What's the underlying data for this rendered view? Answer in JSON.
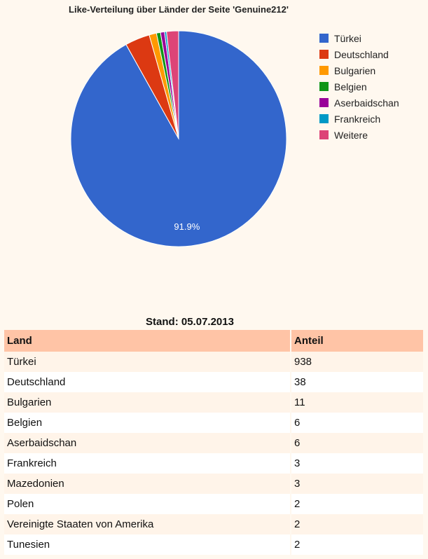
{
  "chart_data": {
    "type": "pie",
    "title": "Like-Verteilung über Länder der Seite 'Genuine212'",
    "slices": [
      {
        "label": "Türkei",
        "value": 91.9,
        "color": "#3366cc"
      },
      {
        "label": "Deutschland",
        "value": 3.7,
        "color": "#dc3912"
      },
      {
        "label": "Bulgarien",
        "value": 1.1,
        "color": "#ff9900"
      },
      {
        "label": "Belgien",
        "value": 0.6,
        "color": "#109618"
      },
      {
        "label": "Aserbaidschan",
        "value": 0.6,
        "color": "#990099"
      },
      {
        "label": "Frankreich",
        "value": 0.3,
        "color": "#0099c6"
      },
      {
        "label": "Weitere",
        "value": 1.8,
        "color": "#dd4477"
      }
    ],
    "data_label": "91.9%",
    "legend_position": "right"
  },
  "table": {
    "caption": "Stand: 05.07.2013",
    "headers": [
      "Land",
      "Anteil"
    ],
    "rows": [
      [
        "Türkei",
        "938"
      ],
      [
        "Deutschland",
        "38"
      ],
      [
        "Bulgarien",
        "11"
      ],
      [
        "Belgien",
        "6"
      ],
      [
        "Aserbaidschan",
        "6"
      ],
      [
        "Frankreich",
        "3"
      ],
      [
        "Mazedonien",
        "3"
      ],
      [
        "Polen",
        "2"
      ],
      [
        "Vereinigte Staaten von Amerika",
        "2"
      ],
      [
        "Tunesien",
        "2"
      ]
    ]
  }
}
